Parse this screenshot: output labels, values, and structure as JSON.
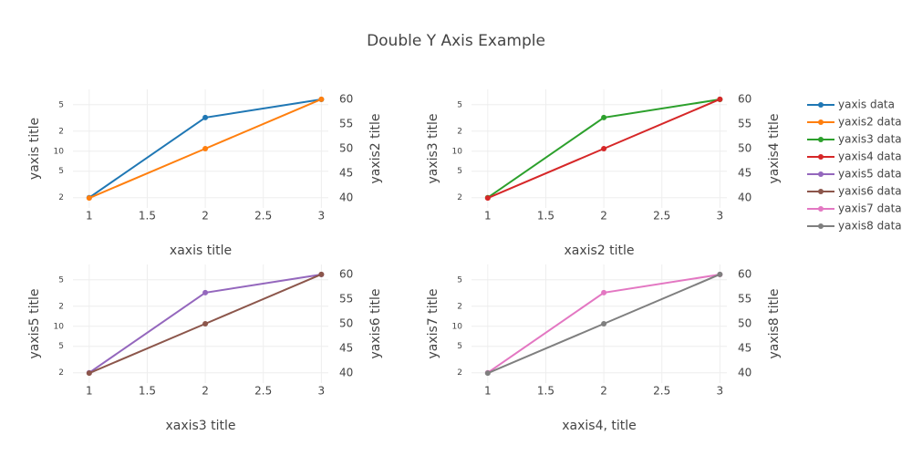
{
  "title": "Double Y Axis Example",
  "chart_data": [
    {
      "type": "line",
      "x_label": "xaxis title",
      "y_label": "yaxis title",
      "y2_label": "yaxis2 title",
      "log_y": true,
      "grid": true,
      "x": [
        1,
        2,
        3
      ],
      "xlim": [
        0.86,
        3.06
      ],
      "xticks": [
        1,
        1.5,
        2,
        2.5,
        3
      ],
      "ylim": [
        1.4,
        85
      ],
      "yticks": [
        2,
        5,
        10,
        {
          "value": 20,
          "label": "2"
        },
        {
          "value": 50,
          "label": "5"
        }
      ],
      "y2lim": [
        38,
        62
      ],
      "y2ticks": [
        40,
        45,
        50,
        55,
        60
      ],
      "series": [
        {
          "name": "yaxis data",
          "color": "#1f77b4",
          "values": [
            2,
            32,
            60
          ]
        },
        {
          "name": "yaxis2 data",
          "color": "#ff7f0e",
          "values": [
            40,
            50,
            60
          ],
          "axis": "y2"
        }
      ]
    },
    {
      "type": "line",
      "x_label": "xaxis2 title",
      "y_label": "yaxis3 title",
      "y2_label": "yaxis4 title",
      "log_y": true,
      "grid": true,
      "x": [
        1,
        2,
        3
      ],
      "xlim": [
        0.86,
        3.06
      ],
      "xticks": [
        1,
        1.5,
        2,
        2.5,
        3
      ],
      "ylim": [
        1.4,
        85
      ],
      "yticks": [
        2,
        5,
        10,
        {
          "value": 20,
          "label": "2"
        },
        {
          "value": 50,
          "label": "5"
        }
      ],
      "y2lim": [
        38,
        62
      ],
      "y2ticks": [
        40,
        45,
        50,
        55,
        60
      ],
      "series": [
        {
          "name": "yaxis3 data",
          "color": "#2ca02c",
          "values": [
            2,
            32,
            60
          ]
        },
        {
          "name": "yaxis4 data",
          "color": "#d62728",
          "values": [
            40,
            50,
            60
          ],
          "axis": "y2"
        }
      ]
    },
    {
      "type": "line",
      "x_label": "xaxis3 title",
      "y_label": "yaxis5 title",
      "y2_label": "yaxis6 title",
      "log_y": true,
      "grid": true,
      "x": [
        1,
        2,
        3
      ],
      "xlim": [
        0.86,
        3.06
      ],
      "xticks": [
        1,
        1.5,
        2,
        2.5,
        3
      ],
      "ylim": [
        1.4,
        85
      ],
      "yticks": [
        2,
        5,
        10,
        {
          "value": 20,
          "label": "2"
        },
        {
          "value": 50,
          "label": "5"
        }
      ],
      "y2lim": [
        38,
        62
      ],
      "y2ticks": [
        40,
        45,
        50,
        55,
        60
      ],
      "series": [
        {
          "name": "yaxis5 data",
          "color": "#9467bd",
          "values": [
            2,
            32,
            60
          ]
        },
        {
          "name": "yaxis6 data",
          "color": "#8c564b",
          "values": [
            40,
            50,
            60
          ],
          "axis": "y2"
        }
      ]
    },
    {
      "type": "line",
      "x_label": "xaxis4, title",
      "y_label": "yaxis7 title",
      "y2_label": "yaxis8 title",
      "log_y": true,
      "grid": true,
      "x": [
        1,
        2,
        3
      ],
      "xlim": [
        0.86,
        3.06
      ],
      "xticks": [
        1,
        1.5,
        2,
        2.5,
        3
      ],
      "ylim": [
        1.4,
        85
      ],
      "yticks": [
        2,
        5,
        10,
        {
          "value": 20,
          "label": "2"
        },
        {
          "value": 50,
          "label": "5"
        }
      ],
      "y2lim": [
        38,
        62
      ],
      "y2ticks": [
        40,
        45,
        50,
        55,
        60
      ],
      "series": [
        {
          "name": "yaxis7 data",
          "color": "#e377c2",
          "values": [
            2,
            32,
            60
          ]
        },
        {
          "name": "yaxis8 data",
          "color": "#7f7f7f",
          "values": [
            40,
            50,
            60
          ],
          "axis": "y2"
        }
      ]
    }
  ]
}
